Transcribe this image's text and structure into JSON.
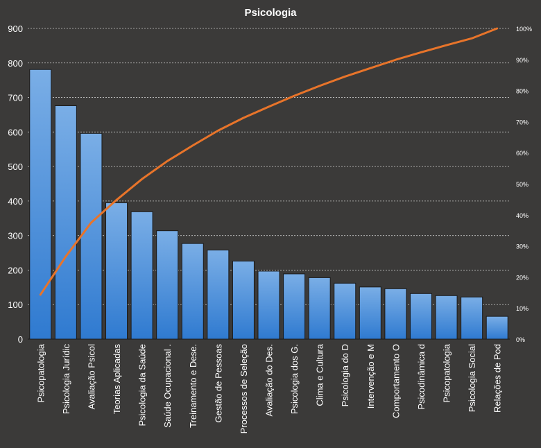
{
  "chart_data": {
    "type": "bar",
    "title": "Psicologia",
    "categories": [
      "Psicopatologia",
      "Psicologia Jurídic",
      "Avaliação Psicol",
      "Teorias Aplicadas",
      "Psicologia da Saúde",
      "Saúde Ocupacional .",
      "Treinamento e Dese.",
      "Gestão de Pessoas",
      "Processos de Seleção",
      "Avaliação do Des.",
      "Psicologia dos G.",
      "Clima e Cultura",
      "Psicologia do D",
      "Intervenção e M",
      "Comportamento O",
      "Psicodinâmica d",
      "Psicopatologia",
      "Psicologia Social",
      "Relações de Pod"
    ],
    "series": [
      {
        "type": "bar",
        "axis": "left",
        "values": [
          781,
          676,
          596,
          395,
          369,
          314,
          277,
          258,
          226,
          197,
          189,
          178,
          162,
          151,
          146,
          132,
          126,
          122,
          66
        ]
      },
      {
        "type": "line",
        "axis": "right",
        "values": [
          14.3,
          26.6,
          37.5,
          44.8,
          51.5,
          57.3,
          62.3,
          67.1,
          71.2,
          74.8,
          78.3,
          81.5,
          84.5,
          87.2,
          89.9,
          92.3,
          94.6,
          96.8,
          100
        ]
      }
    ],
    "ylim": [
      0,
      900
    ],
    "yticks": [
      0,
      100,
      200,
      300,
      400,
      500,
      600,
      700,
      800,
      900
    ],
    "y2lim": [
      0,
      100
    ],
    "y2ticks": [
      "0%",
      "10%",
      "20%",
      "30%",
      "40%",
      "50%",
      "60%",
      "70%",
      "80%",
      "90%",
      "100%"
    ],
    "grid": true,
    "legend": "none",
    "colors": {
      "background": "#3b3a39",
      "bar_top": "#7aaee6",
      "bar_bottom": "#2f7ad0",
      "bar_outline": "#1a1a1a",
      "line": "#e8742a",
      "text": "#ffffff",
      "grid": "#c8c8c8"
    }
  }
}
